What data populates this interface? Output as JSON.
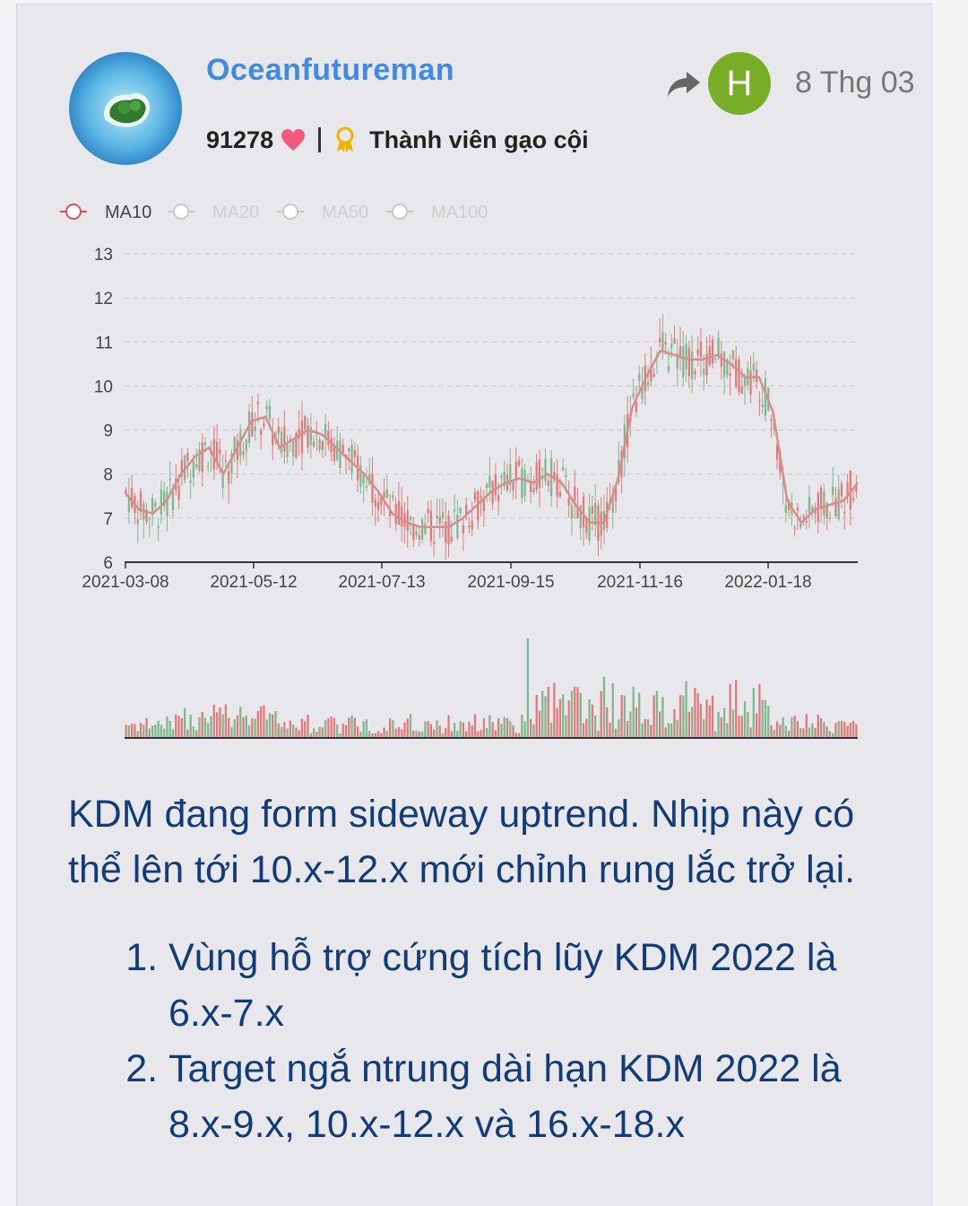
{
  "author": {
    "name": "Oceanfutureman",
    "points": "91278",
    "rank": "Thành viên gạo cội"
  },
  "meta": {
    "share_icon": "share-arrow-icon",
    "reactor_initial": "H",
    "date": "8 Thg 03"
  },
  "colors": {
    "username": "#3f8ae8",
    "body_text": "#123b7a",
    "up": "#e07b7b",
    "down": "#7fb88e",
    "ma10": "#d98c8c"
  },
  "chart_data": {
    "type": "line",
    "legend": [
      {
        "name": "MA10",
        "active": true
      },
      {
        "name": "MA20",
        "active": false
      },
      {
        "name": "MA50",
        "active": false
      },
      {
        "name": "MA100",
        "active": false
      }
    ],
    "legend_position": "top-left",
    "y_ticks": [
      "6",
      "7",
      "8",
      "9",
      "10",
      "11",
      "12",
      "13"
    ],
    "ylim": [
      6,
      13
    ],
    "x_ticks": [
      "2021-03-08",
      "2021-05-12",
      "2021-07-13",
      "2021-09-15",
      "2021-11-16",
      "2022-01-18"
    ],
    "grid": true,
    "ma10_estimate": [
      7.6,
      7.2,
      7.1,
      7.4,
      8.0,
      8.4,
      8.6,
      8.0,
      8.6,
      9.2,
      9.3,
      8.6,
      8.8,
      9.0,
      8.9,
      8.6,
      8.3,
      8.0,
      7.6,
      7.1,
      6.9,
      6.8,
      6.8,
      6.8,
      7.0,
      7.3,
      7.6,
      7.8,
      7.9,
      7.8,
      8.0,
      7.8,
      7.3,
      6.9,
      6.9,
      7.9,
      9.5,
      10.2,
      10.8,
      10.7,
      10.6,
      10.6,
      10.7,
      10.5,
      10.2,
      10.2,
      9.4,
      7.4,
      6.9,
      7.2,
      7.3,
      7.4,
      7.8
    ],
    "volume": "bars below price chart"
  },
  "post": {
    "intro": "KDM đang form sideway uptrend. Nhịp này có thể lên tới 10.x-12.x mới chỉnh rung lắc trở lại.",
    "items": [
      "Vùng hỗ trợ cứng tích lũy KDM 2022 là 6.x-7.x",
      "Target ngắ ntrung dài hạn KDM 2022 là 8.x-9.x, 10.x-12.x và 16.x-18.x"
    ]
  }
}
